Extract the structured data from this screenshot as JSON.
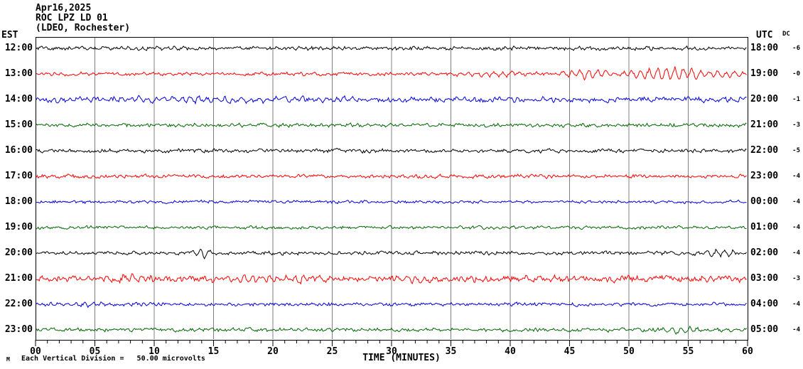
{
  "header": {
    "date": "Apr16,2025",
    "station": "ROC LPZ LD 01",
    "location": "(LDEO, Rochester)"
  },
  "axes": {
    "left_timezone": "EST",
    "right_timezone": "UTC",
    "dc_header": "DC",
    "x_label": "TIME (MINUTES)",
    "x_tick_labels": [
      "00",
      "05",
      "10",
      "15",
      "20",
      "25",
      "30",
      "35",
      "40",
      "45",
      "50",
      "55",
      "60"
    ]
  },
  "footer": {
    "scale_marker": "M",
    "scale_note": "Each Vertical Division =   50.00 microvolts"
  },
  "colors": {
    "frame": "#000000",
    "gridline": "#808080",
    "trace_black": "#000000",
    "trace_red": "#ff0000",
    "trace_blue": "#0000dd",
    "trace_green": "#006600"
  },
  "chart_data": {
    "type": "line",
    "title": "ROC LPZ LD 01 helicorder, Apr16,2025 (LDEO, Rochester)",
    "xlabel": "TIME (MINUTES)",
    "x_range": [
      0,
      60
    ],
    "minutes_per_row": 60,
    "major_tick_minutes": 5,
    "grid": "vertical-5min",
    "vertical_division_microvolts": 50.0,
    "rows": [
      {
        "est": "12:00",
        "utc": "18:00",
        "dc": "-6",
        "color": "#000000",
        "base_amp": 2.4,
        "events": [
          {
            "s": 9,
            "e": 13,
            "p": 2.5
          },
          {
            "s": 19,
            "e": 21,
            "p": 2.0
          }
        ]
      },
      {
        "est": "13:00",
        "utc": "19:00",
        "dc": "-0",
        "color": "#ff0000",
        "base_amp": 2.3,
        "events": [
          {
            "s": 34,
            "e": 44,
            "p": 3.5
          },
          {
            "s": 44,
            "e": 49,
            "p": 6.5
          },
          {
            "s": 49,
            "e": 58,
            "p": 9.5
          },
          {
            "s": 57,
            "e": 60,
            "p": 5.0
          }
        ]
      },
      {
        "est": "14:00",
        "utc": "20:00",
        "dc": "-1",
        "color": "#0000dd",
        "base_amp": 3.2,
        "events": [
          {
            "s": 0,
            "e": 28,
            "p": 3.5
          },
          {
            "s": 28,
            "e": 60,
            "p": 1.2
          }
        ]
      },
      {
        "est": "15:00",
        "utc": "21:00",
        "dc": "-3",
        "color": "#006600",
        "base_amp": 2.4,
        "events": []
      },
      {
        "est": "16:00",
        "utc": "22:00",
        "dc": "-5",
        "color": "#000000",
        "base_amp": 2.4,
        "events": []
      },
      {
        "est": "17:00",
        "utc": "23:00",
        "dc": "-4",
        "color": "#ff0000",
        "base_amp": 2.3,
        "events": []
      },
      {
        "est": "18:00",
        "utc": "00:00",
        "dc": "-4",
        "color": "#0000dd",
        "base_amp": 1.9,
        "events": []
      },
      {
        "est": "19:00",
        "utc": "01:00",
        "dc": "-4",
        "color": "#006600",
        "base_amp": 2.0,
        "events": []
      },
      {
        "est": "20:00",
        "utc": "02:00",
        "dc": "-4",
        "color": "#000000",
        "base_amp": 2.3,
        "events": [
          {
            "s": 13,
            "e": 15,
            "p": 7.0
          },
          {
            "s": 55.5,
            "e": 59.5,
            "p": 4.0
          }
        ]
      },
      {
        "est": "21:00",
        "utc": "03:00",
        "dc": "-3",
        "color": "#ff0000",
        "base_amp": 4.0,
        "events": [
          {
            "s": 0,
            "e": 14,
            "p": 3.0
          },
          {
            "s": 14,
            "e": 26,
            "p": 3.5
          },
          {
            "s": 29,
            "e": 34,
            "p": 5.0
          }
        ]
      },
      {
        "est": "22:00",
        "utc": "04:00",
        "dc": "-4",
        "color": "#0000dd",
        "base_amp": 2.2,
        "events": [
          {
            "s": 0,
            "e": 9,
            "p": 2.0
          }
        ]
      },
      {
        "est": "23:00",
        "utc": "05:00",
        "dc": "-4",
        "color": "#006600",
        "base_amp": 2.4,
        "events": [
          {
            "s": 52.5,
            "e": 56,
            "p": 5.5
          }
        ]
      }
    ]
  }
}
